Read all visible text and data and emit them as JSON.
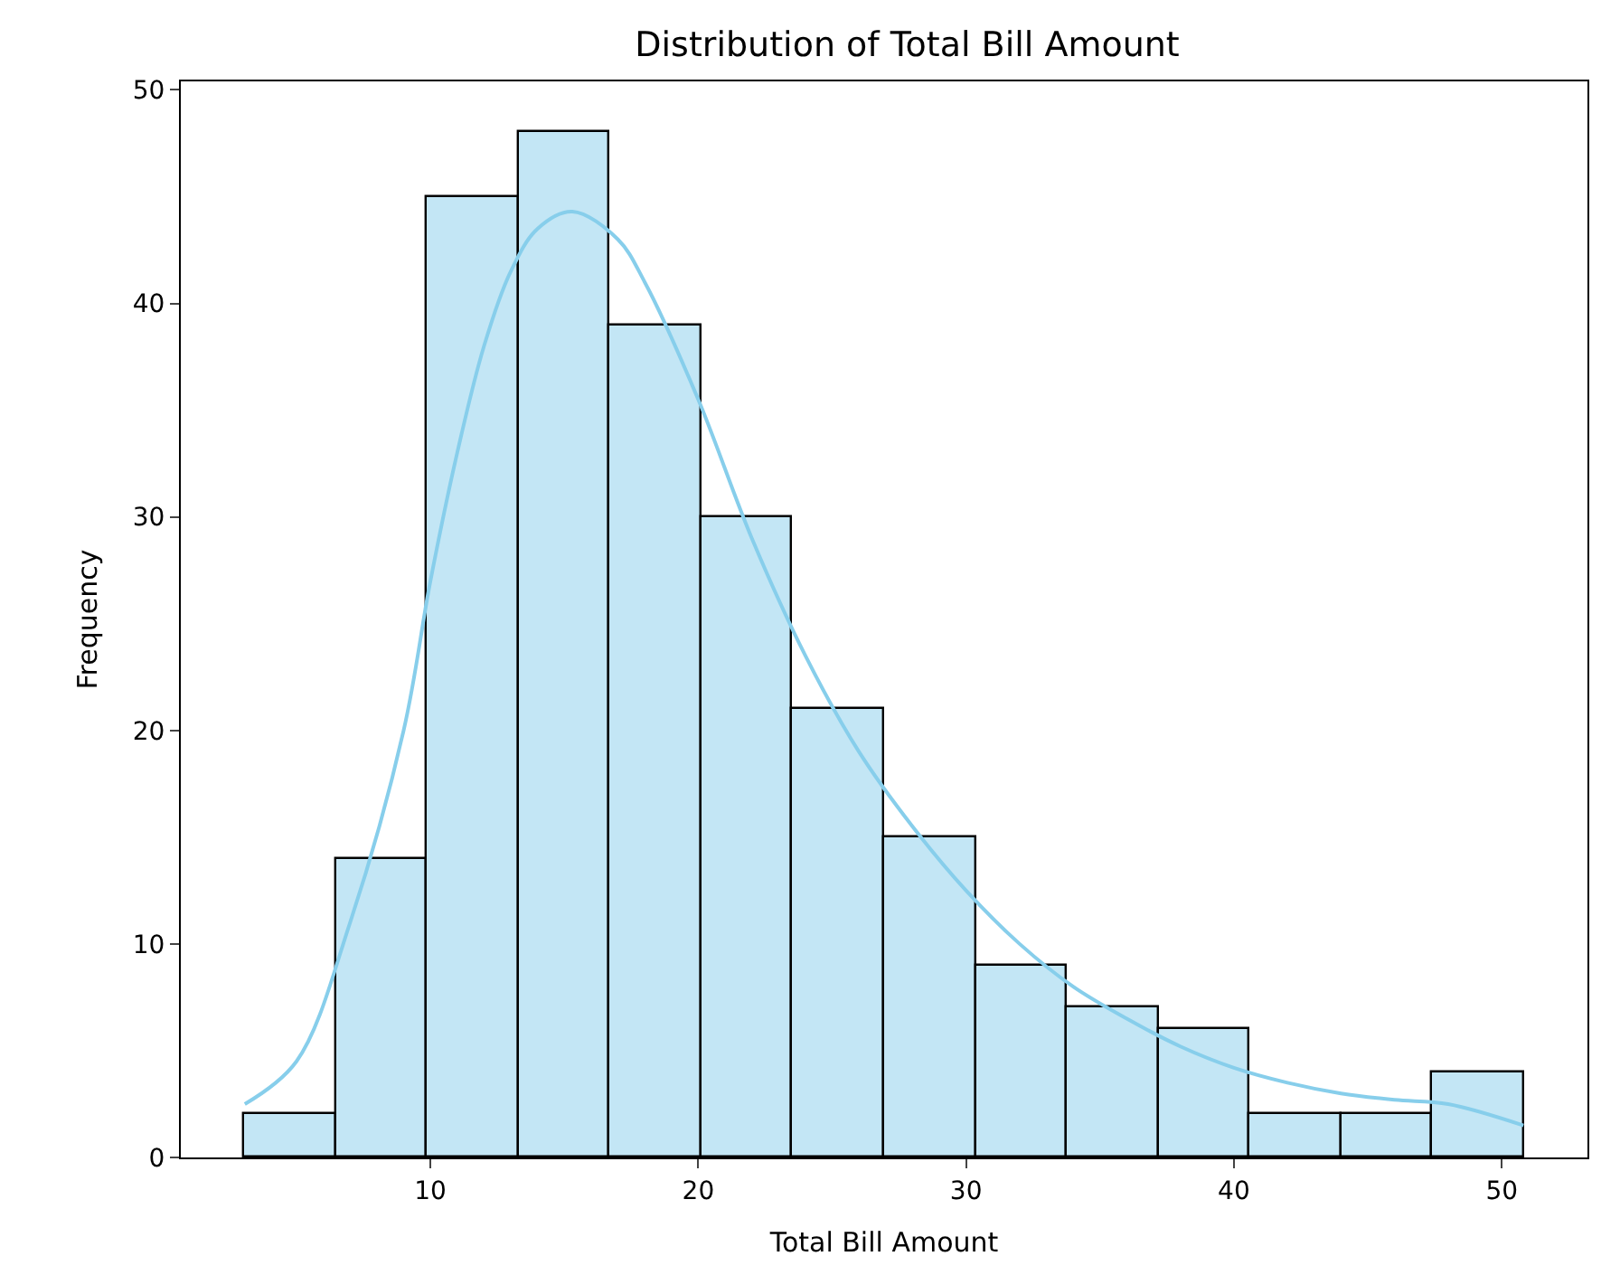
{
  "chart_data": {
    "type": "histogram",
    "title": "Distribution of Total Bill Amount",
    "xlabel": "Total Bill Amount",
    "ylabel": "Frequency",
    "bins": [
      3.07,
      6.48,
      9.89,
      13.3,
      16.71,
      20.12,
      23.53,
      26.94,
      30.35,
      33.76,
      37.17,
      40.58,
      43.99,
      47.4,
      50.81
    ],
    "values": [
      2,
      14,
      45,
      48,
      39,
      30,
      21,
      15,
      9,
      7,
      6,
      2,
      2,
      4
    ],
    "color": "#c3e6f5",
    "series": [
      {
        "type": "line",
        "color": "#87ceeb",
        "x": [
          3.07,
          5,
          7,
          9,
          10,
          11,
          12,
          13,
          14,
          15.3,
          17,
          18,
          20,
          22,
          24,
          26,
          28,
          30,
          32,
          34,
          36,
          38,
          40,
          42,
          44,
          46,
          48,
          50.81
        ],
        "values": [
          2.5,
          4.5,
          11,
          20,
          27,
          33,
          38,
          41.5,
          43.5,
          44.3,
          43,
          41,
          35.5,
          29,
          23.5,
          19,
          15.5,
          12.5,
          10,
          8,
          6.5,
          5.2,
          4.2,
          3.5,
          3,
          2.7,
          2.5,
          1.5
        ]
      }
    ],
    "xlim": [
      0.68,
      53.2
    ],
    "ylim": [
      0,
      50.4
    ],
    "xticks": [
      10,
      20,
      30,
      40,
      50
    ],
    "yticks": [
      0,
      10,
      20,
      30,
      40,
      50
    ]
  }
}
